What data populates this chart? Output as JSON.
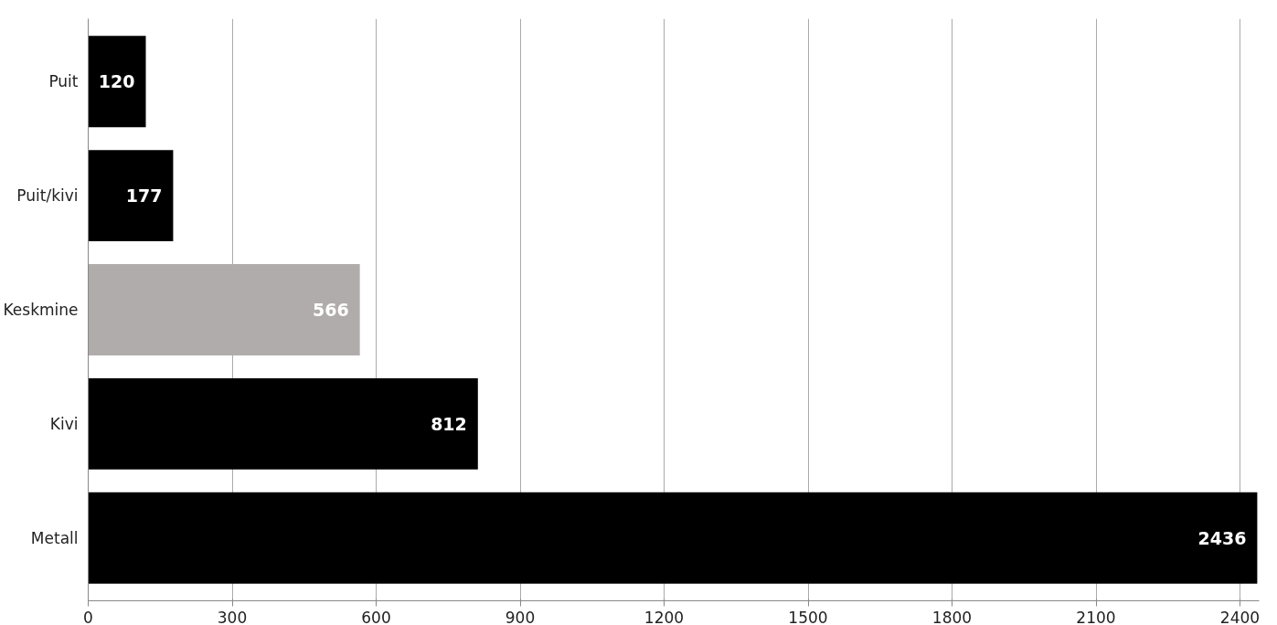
{
  "chart_data": {
    "type": "bar",
    "orientation": "horizontal",
    "categories": [
      "Puit",
      "Puit/kivi",
      "Keskmine",
      "Kivi",
      "Metall"
    ],
    "values": [
      120,
      177,
      566,
      812,
      2436
    ],
    "colors": [
      "#000000",
      "#000000",
      "#b0acab",
      "#000000",
      "#000000"
    ],
    "xlim": [
      0,
      2440
    ],
    "xticks": [
      0,
      300,
      600,
      900,
      1200,
      1500,
      1800,
      2100,
      2400
    ],
    "grid": "x",
    "data_labels": true
  }
}
